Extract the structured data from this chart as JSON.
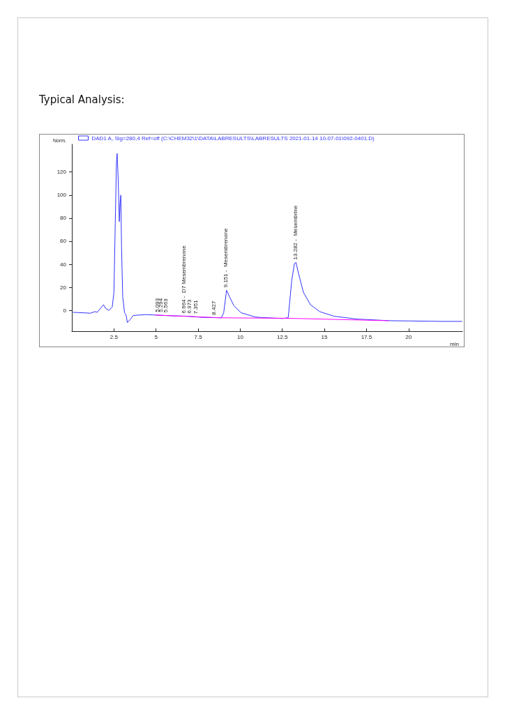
{
  "chart_data": {
    "type": "line",
    "title": "Typical Analysis:",
    "xlabel": "min",
    "ylabel": "Norm.",
    "xlim": [
      0,
      23.2
    ],
    "ylim": [
      -18,
      144
    ],
    "xticks": [
      2.5,
      5,
      7.5,
      10,
      12.5,
      15,
      17.5,
      20
    ],
    "yticks": [
      0,
      20,
      40,
      60,
      80,
      100,
      120
    ],
    "legend": "top left",
    "series": [
      {
        "name": "DAD1 A, Sig=280,4 Ref=off (C:\\CHEM32\\1\\DATA\\LABRESULTS\\LABRESULTS 2021-01-14 10-07-01\\092-0401.D)",
        "color": "#3333ff",
        "x": [
          0.06,
          1.1,
          1.37,
          1.51,
          1.71,
          1.88,
          1.99,
          2.2,
          2.4,
          2.5,
          2.58,
          2.65,
          2.69,
          2.75,
          2.82,
          2.87,
          2.91,
          2.95,
          3.02,
          3.13,
          3.22,
          3.3,
          3.46,
          3.64,
          4.4,
          4.95,
          5.78,
          6.88,
          7.71,
          8.88,
          9.02,
          9.19,
          9.36,
          9.63,
          10.05,
          10.87,
          11.11,
          12.5,
          12.85,
          13.06,
          13.22,
          13.31,
          13.47,
          13.75,
          14.17,
          14.72,
          15.56,
          16.94,
          18.89,
          20,
          22.08,
          23.19
        ],
        "values": [
          -1.6,
          -2.4,
          -1,
          -1.6,
          2,
          5,
          2,
          0,
          3,
          16,
          76,
          129,
          136,
          115,
          77,
          94,
          100,
          56,
          12,
          -2,
          -4,
          -10.5,
          -8,
          -4.4,
          -3.6,
          -4,
          -4.6,
          -5,
          -6,
          -6.4,
          -2,
          17.5,
          12,
          4,
          -2,
          -5.6,
          -6,
          -7,
          -6.3,
          26,
          40.6,
          41.6,
          31.7,
          15.8,
          5,
          -1,
          -5,
          -7.5,
          -8.9,
          -9.1,
          -9.5,
          -9.5
        ]
      },
      {
        "color": "#ff00ff",
        "x": [
          4.95,
          8.88,
          12.85,
          18.82
        ],
        "values": [
          -4,
          -6.4,
          -6.8,
          -8.9
        ]
      }
    ],
    "annotations": [
      {
        "text": "5.093",
        "x": 5.093,
        "y": -4
      },
      {
        "text": "5.294",
        "x": 5.294,
        "y": -4
      },
      {
        "text": "5.563",
        "x": 5.563,
        "y": -4.3
      },
      {
        "text": "6.664 -  D7 Mesembrenone",
        "x": 6.664,
        "y": -5
      },
      {
        "text": "6.973",
        "x": 6.973,
        "y": -5
      },
      {
        "text": "7.351",
        "x": 7.351,
        "y": -5.5
      },
      {
        "text": "8.427",
        "x": 8.427,
        "y": -6.3
      },
      {
        "text": "9.151 -  Mesembrenone",
        "x": 9.151,
        "y": 17.5
      },
      {
        "text": "13.282 -  Mesembrine",
        "x": 13.282,
        "y": 41.6
      }
    ]
  }
}
